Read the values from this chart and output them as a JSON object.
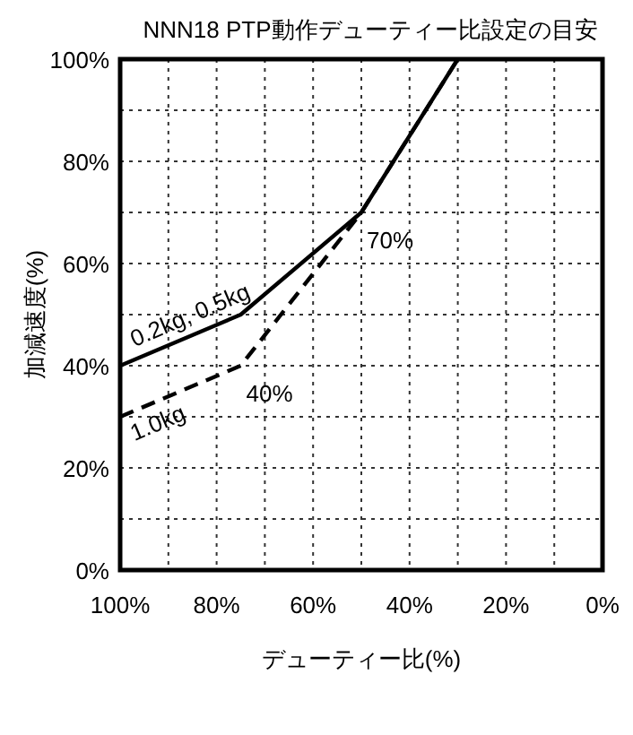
{
  "chart_data": {
    "type": "line",
    "title": "NNN18 PTP動作デューティー比設定の目安",
    "xlabel": "デューティー比(%)",
    "ylabel": "加減速度(%)",
    "x": [
      100,
      75,
      50,
      30
    ],
    "series": [
      {
        "name": "0.2kg, 0.5kg",
        "color": "#000000",
        "line_style": "solid",
        "values": [
          40,
          50,
          70,
          100
        ]
      },
      {
        "name": "1.0kg",
        "color": "#000000",
        "line_style": "dashed",
        "values": [
          30,
          40,
          70,
          100
        ]
      }
    ],
    "xlim": [
      100,
      0
    ],
    "ylim": [
      0,
      100
    ],
    "xticks": [
      {
        "value": 100,
        "label": "100%"
      },
      {
        "value": 90,
        "label": null
      },
      {
        "value": 80,
        "label": "80%"
      },
      {
        "value": 70,
        "label": null
      },
      {
        "value": 60,
        "label": "60%"
      },
      {
        "value": 50,
        "label": null
      },
      {
        "value": 40,
        "label": "40%"
      },
      {
        "value": 30,
        "label": null
      },
      {
        "value": 20,
        "label": "20%"
      },
      {
        "value": 10,
        "label": null
      },
      {
        "value": 0,
        "label": "0%"
      }
    ],
    "yticks": [
      {
        "value": 0,
        "label": "0%"
      },
      {
        "value": 10,
        "label": null
      },
      {
        "value": 20,
        "label": "20%"
      },
      {
        "value": 30,
        "label": null
      },
      {
        "value": 40,
        "label": "40%"
      },
      {
        "value": 50,
        "label": null
      },
      {
        "value": 60,
        "label": "60%"
      },
      {
        "value": 70,
        "label": null
      },
      {
        "value": 80,
        "label": "80%"
      },
      {
        "value": 90,
        "label": null
      },
      {
        "value": 100,
        "label": "100%"
      }
    ],
    "grid": true,
    "marker": "none",
    "annotations": [
      {
        "text": "70%",
        "x": 50,
        "y": 70
      },
      {
        "text": "40%",
        "x": 75,
        "y": 40
      }
    ]
  }
}
